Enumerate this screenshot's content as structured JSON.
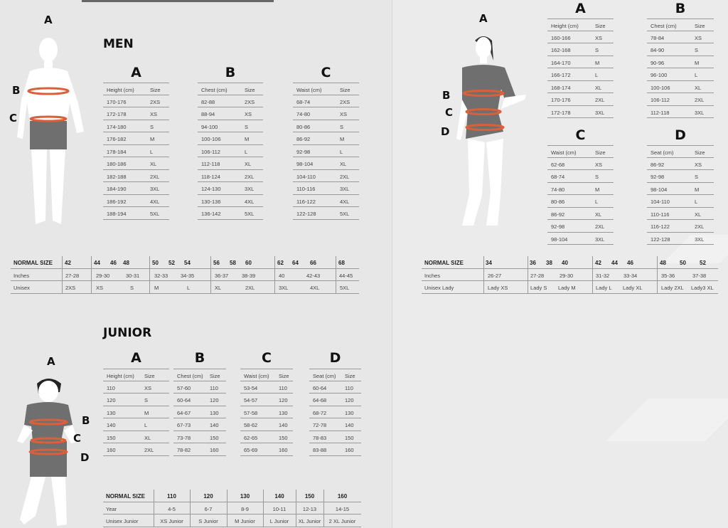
{
  "colors": {
    "background": "#e7e7e7",
    "band": "#d9603b",
    "garment": "#6f6f6f",
    "figure": "#ffffff"
  },
  "men": {
    "title": "MEN",
    "figure_labels": {
      "a": "A",
      "b": "B",
      "c": "C"
    },
    "tables": [
      {
        "letter": "A",
        "headers": [
          "Height (cm)",
          "Size"
        ],
        "rows": [
          [
            "170-176",
            "2XS"
          ],
          [
            "172-178",
            "XS"
          ],
          [
            "174-180",
            "S"
          ],
          [
            "176-182",
            "M"
          ],
          [
            "178-184",
            "L"
          ],
          [
            "180-186",
            "XL"
          ],
          [
            "182-188",
            "2XL"
          ],
          [
            "184-190",
            "3XL"
          ],
          [
            "186-192",
            "4XL"
          ],
          [
            "188-194",
            "5XL"
          ]
        ]
      },
      {
        "letter": "B",
        "headers": [
          "Chest (cm)",
          "Size"
        ],
        "rows": [
          [
            "82-88",
            "2XS"
          ],
          [
            "88-94",
            "XS"
          ],
          [
            "94-100",
            "S"
          ],
          [
            "100-106",
            "M"
          ],
          [
            "106-112",
            "L"
          ],
          [
            "112-118",
            "XL"
          ],
          [
            "118-124",
            "2XL"
          ],
          [
            "124-130",
            "3XL"
          ],
          [
            "130-136",
            "4XL"
          ],
          [
            "136-142",
            "5XL"
          ]
        ]
      },
      {
        "letter": "C",
        "headers": [
          "Waist (cm)",
          "Size"
        ],
        "rows": [
          [
            "68-74",
            "2XS"
          ],
          [
            "74-80",
            "XS"
          ],
          [
            "80-86",
            "S"
          ],
          [
            "86-92",
            "M"
          ],
          [
            "92-98",
            "L"
          ],
          [
            "98-104",
            "XL"
          ],
          [
            "104-110",
            "2XL"
          ],
          [
            "110-116",
            "3XL"
          ],
          [
            "116-122",
            "4XL"
          ],
          [
            "122-128",
            "5XL"
          ]
        ]
      }
    ],
    "normal_size": {
      "rows": [
        {
          "label": "NORMAL SIZE",
          "values": [
            "42",
            "44",
            "46",
            "48",
            "50",
            "52",
            "54",
            "56",
            "58",
            "60",
            "62",
            "64",
            "66",
            "68"
          ]
        },
        {
          "label": "Inches",
          "values": [
            "27-28",
            "29-30",
            "30-31",
            "32-33",
            "34-35",
            "36-37",
            "38-39",
            "40",
            "42-43",
            "44-45"
          ]
        },
        {
          "label": "Unisex",
          "values": [
            "2XS",
            "XS",
            "S",
            "M",
            "L",
            "XL",
            "2XL",
            "3XL",
            "4XL",
            "5XL"
          ]
        }
      ]
    }
  },
  "women": {
    "figure_labels": {
      "a": "A",
      "b": "B",
      "c": "C",
      "d": "D"
    },
    "tables": [
      {
        "letter": "A",
        "headers": [
          "Height (cm)",
          "Size"
        ],
        "rows": [
          [
            "160-166",
            "XS"
          ],
          [
            "162-168",
            "S"
          ],
          [
            "164-170",
            "M"
          ],
          [
            "166-172",
            "L"
          ],
          [
            "168-174",
            "XL"
          ],
          [
            "170-176",
            "2XL"
          ],
          [
            "172-178",
            "3XL"
          ]
        ]
      },
      {
        "letter": "B",
        "headers": [
          "Chest (cm)",
          "Size"
        ],
        "rows": [
          [
            "78-84",
            "XS"
          ],
          [
            "84-90",
            "S"
          ],
          [
            "90-96",
            "M"
          ],
          [
            "96-100",
            "L"
          ],
          [
            "100-106",
            "XL"
          ],
          [
            "106-112",
            "2XL"
          ],
          [
            "112-118",
            "3XL"
          ]
        ]
      },
      {
        "letter": "C",
        "headers": [
          "Waist (cm)",
          "Size"
        ],
        "rows": [
          [
            "62-68",
            "XS"
          ],
          [
            "68-74",
            "S"
          ],
          [
            "74-80",
            "M"
          ],
          [
            "80-86",
            "L"
          ],
          [
            "86-92",
            "XL"
          ],
          [
            "92-98",
            "2XL"
          ],
          [
            "98-104",
            "3XL"
          ]
        ]
      },
      {
        "letter": "D",
        "headers": [
          "Seat (cm)",
          "Size"
        ],
        "rows": [
          [
            "86-92",
            "XS"
          ],
          [
            "92-98",
            "S"
          ],
          [
            "98-104",
            "M"
          ],
          [
            "104-110",
            "L"
          ],
          [
            "110-116",
            "XL"
          ],
          [
            "116-122",
            "2XL"
          ],
          [
            "122-128",
            "3XL"
          ]
        ]
      }
    ],
    "normal_size": {
      "rows": [
        {
          "label": "NORMAL SIZE",
          "values": [
            "34",
            "36",
            "38",
            "40",
            "42",
            "44",
            "46",
            "48",
            "50",
            "52"
          ]
        },
        {
          "label": "Inches",
          "values": [
            "26-27",
            "27-28",
            "29-30",
            "31-32",
            "33-34",
            "35-36",
            "37-38"
          ]
        },
        {
          "label": "Unisex Lady",
          "values": [
            "Lady XS",
            "Lady S",
            "Lady M",
            "Lady L",
            "Lady XL",
            "Lady 2XL",
            "Lady3 XL"
          ]
        }
      ]
    }
  },
  "junior": {
    "title": "JUNIOR",
    "figure_labels": {
      "a": "A",
      "b": "B",
      "c": "C",
      "d": "D"
    },
    "tables": [
      {
        "letter": "A",
        "headers": [
          "Height (cm)",
          "Size"
        ],
        "rows": [
          [
            "110",
            "XS"
          ],
          [
            "120",
            "S"
          ],
          [
            "130",
            "M"
          ],
          [
            "140",
            "L"
          ],
          [
            "150",
            "XL"
          ],
          [
            "160",
            "2XL"
          ]
        ]
      },
      {
        "letter": "B",
        "headers": [
          "Chest (cm)",
          "Size"
        ],
        "rows": [
          [
            "57-60",
            "110"
          ],
          [
            "60-64",
            "120"
          ],
          [
            "64-67",
            "130"
          ],
          [
            "67-73",
            "140"
          ],
          [
            "73-78",
            "150"
          ],
          [
            "78-82",
            "160"
          ]
        ]
      },
      {
        "letter": "C",
        "headers": [
          "Waist (cm)",
          "Size"
        ],
        "rows": [
          [
            "53-54",
            "110"
          ],
          [
            "54-57",
            "120"
          ],
          [
            "57-58",
            "130"
          ],
          [
            "58-62",
            "140"
          ],
          [
            "62-65",
            "150"
          ],
          [
            "65-69",
            "160"
          ]
        ]
      },
      {
        "letter": "D",
        "headers": [
          "Seat (cm)",
          "Size"
        ],
        "rows": [
          [
            "60-64",
            "110"
          ],
          [
            "64-68",
            "120"
          ],
          [
            "68-72",
            "130"
          ],
          [
            "72-78",
            "140"
          ],
          [
            "78-83",
            "150"
          ],
          [
            "83-88",
            "160"
          ]
        ]
      }
    ],
    "normal_size": {
      "rows": [
        {
          "label": "NORMAL SIZE",
          "values": [
            "110",
            "120",
            "130",
            "140",
            "150",
            "160"
          ]
        },
        {
          "label": "Year",
          "values": [
            "4-5",
            "6-7",
            "8-9",
            "10-11",
            "12-13",
            "14-15"
          ]
        },
        {
          "label": "Unisex Junior",
          "values": [
            "XS Junior",
            "S Junior",
            "M Junior",
            "L Junior",
            "XL Junior",
            "2 XL Junior"
          ]
        }
      ]
    }
  }
}
